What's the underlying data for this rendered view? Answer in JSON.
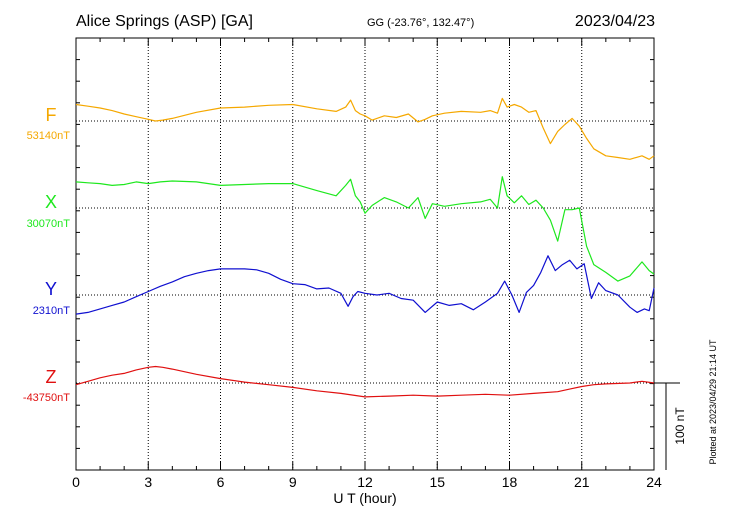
{
  "header": {
    "station": "Alice Springs (ASP)  [GA]",
    "coords": "GG (-23.76°, 132.47°)",
    "date": "2023/04/23"
  },
  "footer": {
    "scale_label": "100 nT",
    "plotted_note": "Plotted at 2023/04/29 21:14 UT"
  },
  "colors": {
    "F": "#f5a800",
    "X": "#1ee81e",
    "Y": "#1010d0",
    "Z": "#e01010",
    "grid": "#000000",
    "axis": "#000000"
  },
  "chart_data": {
    "type": "line",
    "title": "Alice Springs (ASP)  [GA]",
    "xlabel": "U T (hour)",
    "ylabel": "",
    "xlim": [
      0,
      24
    ],
    "x_ticks": [
      0,
      3,
      6,
      9,
      12,
      15,
      18,
      21,
      24
    ],
    "x_tick_labels": [
      "0",
      "3",
      "6",
      "9",
      "12",
      "15",
      "18",
      "21",
      "24"
    ],
    "grid": "dotted",
    "scale_bar_nT": 100,
    "series": [
      {
        "name": "F",
        "baseline_label": "53140nT",
        "baseline_nT": 53140,
        "x": [
          0,
          0.5,
          1,
          1.5,
          2,
          2.5,
          3,
          3.3,
          3.6,
          4,
          5,
          6,
          7,
          8,
          9,
          10,
          10.8,
          11.2,
          11.4,
          11.6,
          11.8,
          12.0,
          12.3,
          12.8,
          13.3,
          13.8,
          14.2,
          14.5,
          14.8,
          15.3,
          16,
          16.8,
          17.2,
          17.5,
          17.7,
          17.9,
          18.2,
          18.5,
          18.8,
          19.1,
          19.4,
          19.7,
          20.0,
          20.3,
          20.6,
          20.9,
          21.2,
          21.5,
          22.0,
          22.5,
          23.0,
          23.5,
          23.8,
          24
        ],
        "values": [
          19,
          17,
          15,
          12,
          8,
          5,
          2,
          0,
          1,
          3,
          10,
          15,
          16,
          18,
          19,
          14,
          11,
          16,
          24,
          12,
          8,
          6,
          1,
          6,
          4,
          8,
          -1,
          2,
          6,
          9,
          11,
          10,
          12,
          9,
          26,
          16,
          19,
          16,
          10,
          12,
          -8,
          -26,
          -12,
          -4,
          3,
          -6,
          -20,
          -32,
          -40,
          -42,
          -44,
          -40,
          -44,
          -40
        ]
      },
      {
        "name": "X",
        "baseline_label": "30070nT",
        "baseline_nT": 30070,
        "x": [
          0,
          0.5,
          1,
          1.5,
          2,
          2.5,
          3,
          3.5,
          4,
          5,
          6,
          7,
          8,
          9,
          10,
          10.8,
          11.2,
          11.4,
          11.6,
          11.8,
          12.0,
          12.3,
          12.8,
          13.3,
          13.8,
          14.2,
          14.5,
          14.8,
          15.3,
          16,
          16.8,
          17.2,
          17.5,
          17.7,
          17.9,
          18.2,
          18.5,
          18.8,
          19.1,
          19.4,
          19.7,
          20.0,
          20.3,
          20.6,
          20.9,
          21.2,
          21.5,
          22.0,
          22.5,
          23.0,
          23.5,
          23.8,
          24
        ],
        "values": [
          30,
          29,
          28,
          26,
          27,
          30,
          28,
          30,
          31,
          30,
          26,
          27,
          28,
          28,
          20,
          14,
          26,
          33,
          14,
          7,
          -6,
          3,
          12,
          7,
          0,
          12,
          -12,
          5,
          2,
          5,
          7,
          10,
          0,
          36,
          14,
          6,
          14,
          4,
          9,
          0,
          -14,
          -38,
          -2,
          -2,
          0,
          -44,
          -65,
          -74,
          -84,
          -78,
          -62,
          -72,
          -76
        ]
      },
      {
        "name": "Y",
        "baseline_label": "2310nT",
        "baseline_nT": 2310,
        "x": [
          0,
          0.5,
          1,
          1.5,
          2,
          2.5,
          3,
          3.5,
          4,
          4.5,
          5,
          5.5,
          6,
          6.5,
          7,
          7.5,
          8,
          8.5,
          9,
          9.5,
          10,
          10.5,
          11,
          11.3,
          11.5,
          11.7,
          12,
          12.5,
          13,
          13.5,
          14,
          14.5,
          15,
          15.5,
          16,
          16.5,
          17,
          17.5,
          17.8,
          18.1,
          18.4,
          18.7,
          19.0,
          19.3,
          19.6,
          19.9,
          20.2,
          20.5,
          20.8,
          21.1,
          21.4,
          21.7,
          22.0,
          22.5,
          23.0,
          23.3,
          23.6,
          23.8,
          24
        ],
        "values": [
          -22,
          -20,
          -16,
          -12,
          -8,
          -2,
          4,
          10,
          15,
          21,
          25,
          28,
          30,
          30,
          30,
          29,
          25,
          18,
          13,
          12,
          7,
          8,
          2,
          -13,
          -2,
          4,
          2,
          0,
          2,
          -4,
          -6,
          -20,
          -8,
          -12,
          -10,
          -17,
          -8,
          2,
          16,
          0,
          -20,
          3,
          11,
          26,
          45,
          28,
          35,
          40,
          30,
          36,
          -4,
          14,
          5,
          0,
          -14,
          -20,
          -16,
          -18,
          8
        ]
      },
      {
        "name": "Z",
        "baseline_label": "-43750nT",
        "baseline_nT": -43750,
        "x": [
          0,
          0.5,
          1,
          1.5,
          2,
          2.5,
          3,
          3.3,
          3.6,
          4,
          5,
          6,
          7,
          8,
          9,
          10,
          11,
          12,
          13,
          14,
          15,
          16,
          17,
          18,
          19,
          20,
          20.5,
          21,
          21.5,
          22,
          23,
          23.5,
          24
        ],
        "values": [
          -2,
          2,
          6,
          9,
          11,
          15,
          18,
          19,
          18,
          16,
          10,
          5,
          1,
          -2,
          -5,
          -9,
          -12,
          -16,
          -15,
          -14,
          -15,
          -14,
          -13,
          -14,
          -12,
          -10,
          -7,
          -4,
          -2,
          -1,
          0,
          2,
          0
        ]
      }
    ]
  }
}
